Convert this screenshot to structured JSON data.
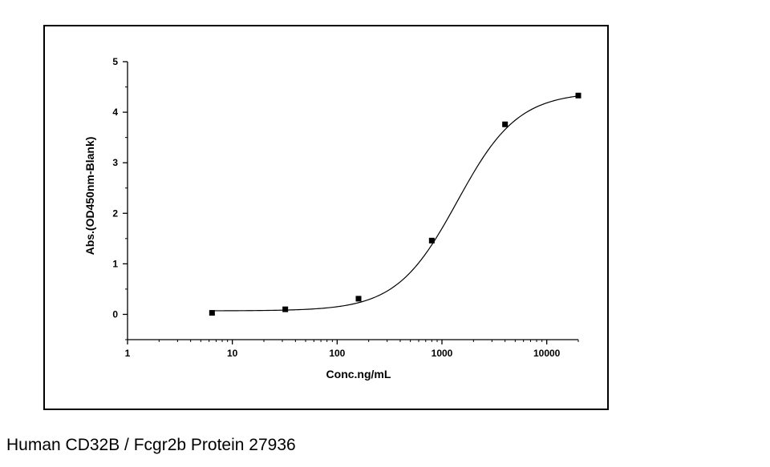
{
  "caption": "Human CD32B / Fcgr2b Protein 27936",
  "chart_data": {
    "type": "scatter",
    "xlabel": "Conc.ng/mL",
    "ylabel": "Abs.(OD450nm-Blank)",
    "x_scale": "log",
    "xlim": [
      1,
      20000
    ],
    "ylim": [
      -0.5,
      5
    ],
    "x_ticks": [
      1,
      10,
      100,
      1000,
      10000
    ],
    "x_tick_labels": [
      "1",
      "10",
      "100",
      "1000",
      "10000"
    ],
    "y_ticks": [
      0,
      1,
      2,
      3,
      4,
      5
    ],
    "y_tick_labels": [
      "0",
      "1",
      "2",
      "3",
      "4",
      "5"
    ],
    "grid": false,
    "series": [
      {
        "x": [
          6.4,
          32,
          160,
          800,
          4000,
          20000
        ],
        "y": [
          0.03,
          0.1,
          0.31,
          1.46,
          3.76,
          4.33
        ],
        "marker": "square",
        "color": "#000000"
      }
    ],
    "fit": {
      "model": "4PL",
      "bottom": 0.07,
      "top": 4.4,
      "ec50": 1400,
      "hill": 1.5,
      "color": "#000000"
    }
  }
}
